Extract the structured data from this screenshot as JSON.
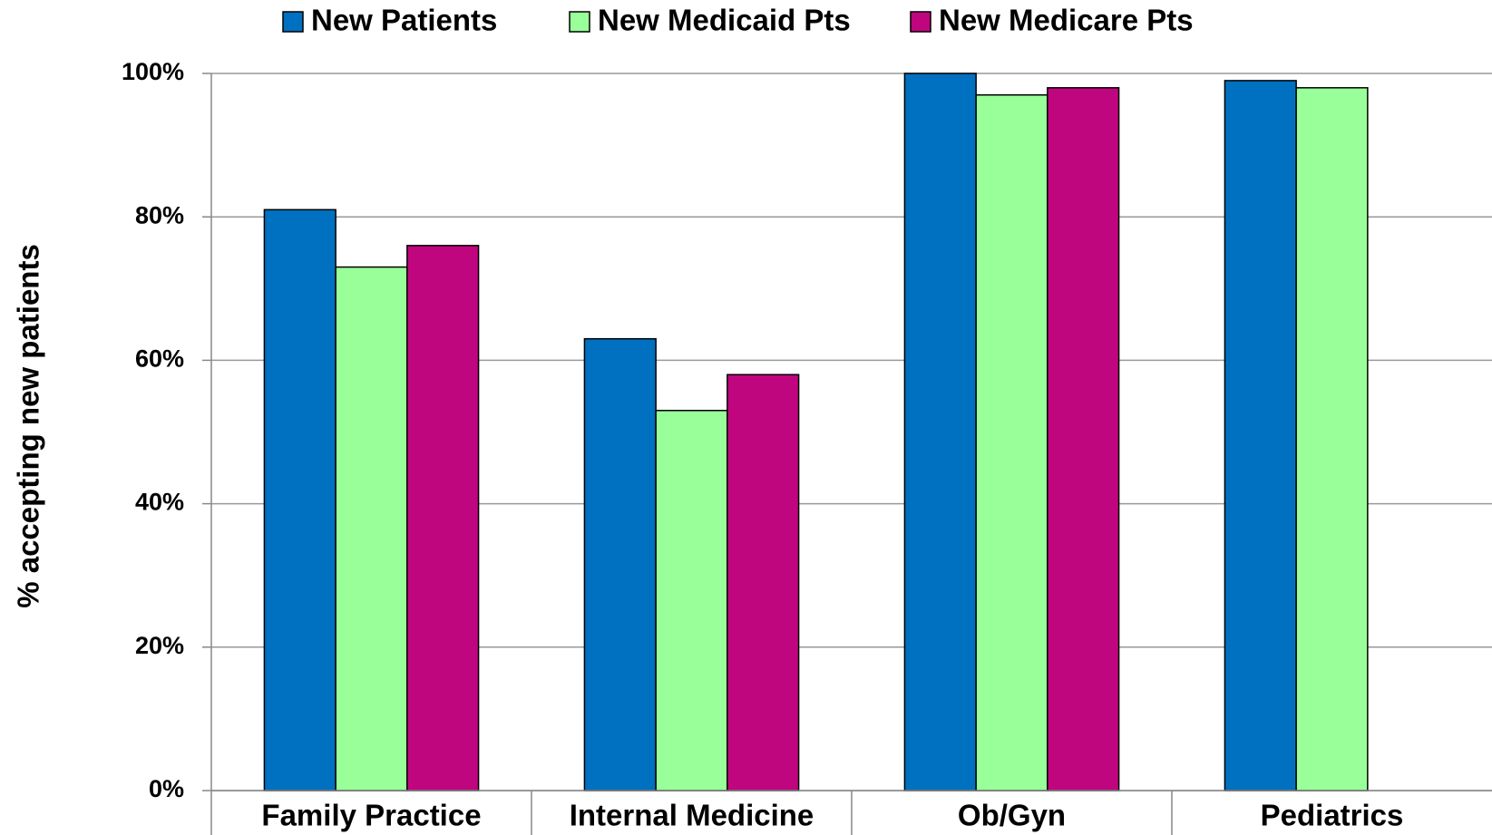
{
  "chart_data": {
    "type": "bar",
    "y_label": "% accepting new patients",
    "categories": [
      "Family Practice",
      "Internal Medicine",
      "Ob/Gyn",
      "Pediatrics"
    ],
    "series": [
      {
        "name": "New Patients",
        "color": "#0070c0",
        "values": [
          81,
          63,
          100,
          99
        ]
      },
      {
        "name": "New Medicaid Pts",
        "color": "#99ff99",
        "values": [
          73,
          53,
          97,
          98
        ]
      },
      {
        "name": "New Medicare Pts",
        "color": "#c0067f",
        "values": [
          76,
          58,
          98,
          null
        ]
      }
    ],
    "ylim": [
      0,
      100
    ],
    "yticks": [
      {
        "value": 0,
        "label": "0%"
      },
      {
        "value": 20,
        "label": "20%"
      },
      {
        "value": 40,
        "label": "40%"
      },
      {
        "value": 60,
        "label": "60%"
      },
      {
        "value": 80,
        "label": "80%"
      },
      {
        "value": 100,
        "label": "100%"
      }
    ],
    "grid": true,
    "legend": "top"
  }
}
